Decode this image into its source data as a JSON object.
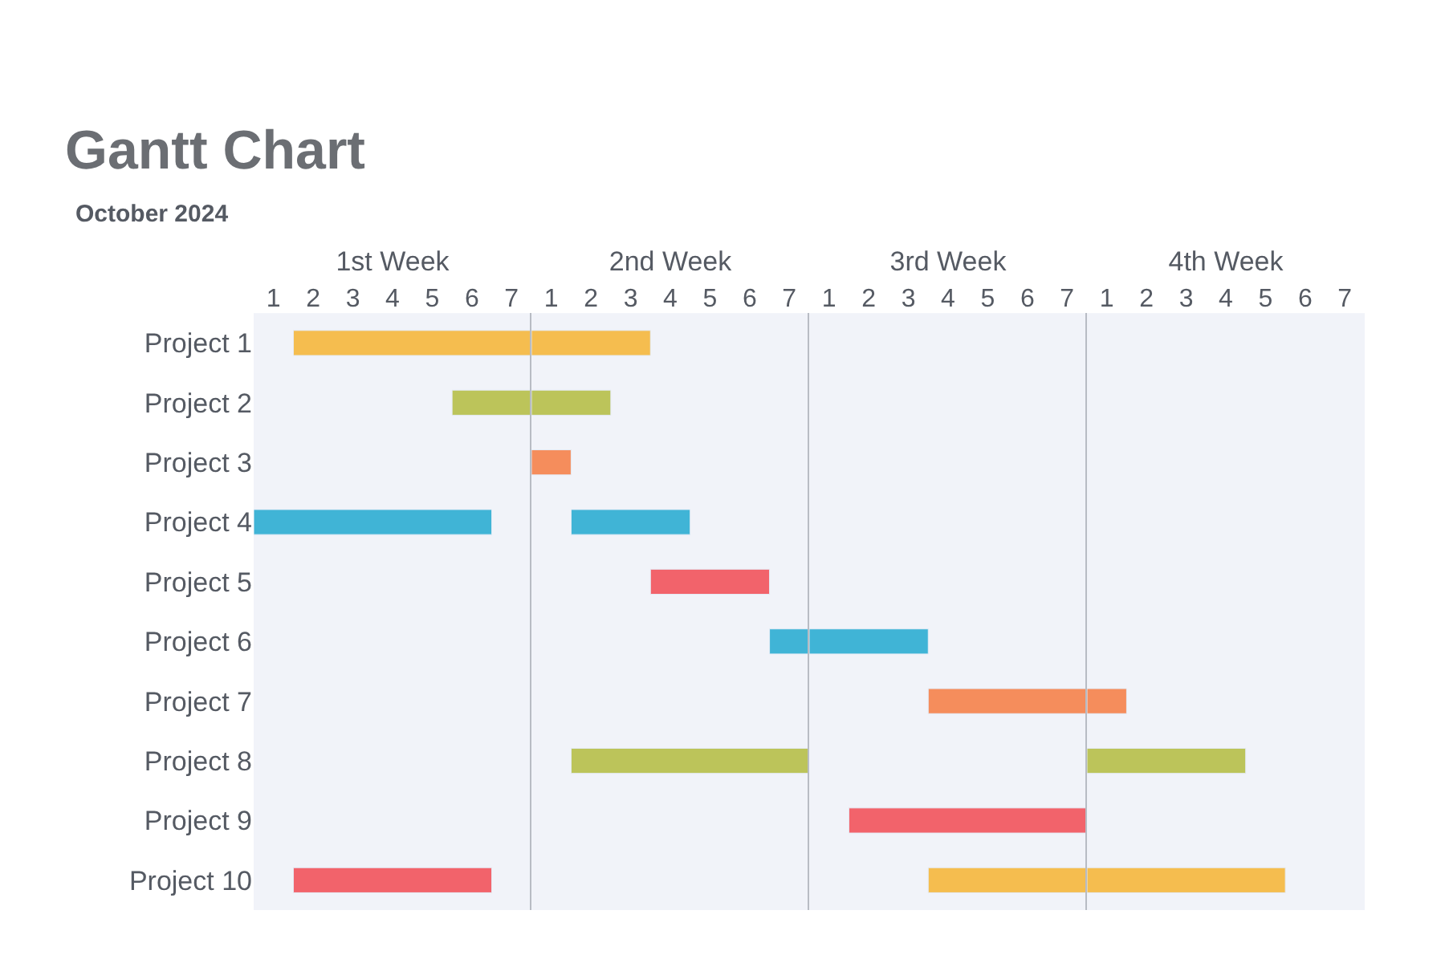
{
  "chart_data": [
    {
      "type": "bar",
      "orientation": "horizontal",
      "title": "Gantt Chart",
      "subtitle": "October 2024",
      "x2label": "1st Week",
      "categories": [
        "Project 1",
        "Project 2",
        "Project 3",
        "Project 4",
        "Project 5",
        "Project 6",
        "Project 7",
        "Project 8",
        "Project 9",
        "Project 10"
      ],
      "series": [
        {
          "base": [
            1.5,
            5.5,
            null,
            0.5,
            null,
            null,
            null,
            null,
            null,
            1.5
          ],
          "values": [
            6,
            2,
            null,
            6,
            null,
            null,
            null,
            null,
            null,
            5
          ],
          "colors": [
            "#f5bd4f",
            "#bcc45a",
            null,
            "#40b4d6",
            null,
            null,
            null,
            null,
            null,
            "#f2636b"
          ]
        }
      ],
      "xlim": [
        0.5,
        7.5
      ],
      "xticks": [
        1,
        2,
        3,
        4,
        5,
        6,
        7
      ],
      "grid": false
    },
    {
      "type": "bar",
      "orientation": "horizontal",
      "x2label": "2nd Week",
      "tick_labels": "x",
      "categories": [
        "Project 1",
        "Project 2",
        "Project 3",
        "Project 4",
        "Project 5",
        "Project 6",
        "Project 7",
        "Project 8",
        "Project 9",
        "Project 10"
      ],
      "series": [
        {
          "base": [
            0.5,
            0.5,
            0.5,
            1.5,
            3.5,
            6.5,
            null,
            1.5,
            null,
            null
          ],
          "values": [
            3,
            2,
            1,
            3,
            3,
            1,
            null,
            6,
            null,
            null
          ],
          "colors": [
            "#f5bd4f",
            "#bcc45a",
            "#f58d5c",
            "#40b4d6",
            "#f2636b",
            "#40b4d6",
            null,
            "#bcc45a",
            null,
            null
          ]
        }
      ],
      "xlim": [
        0.5,
        7.5
      ],
      "xticks": [
        1,
        2,
        3,
        4,
        5,
        6,
        7
      ],
      "grid": false
    },
    {
      "type": "bar",
      "orientation": "horizontal",
      "x2label": "3rd Week",
      "tick_labels": "x",
      "categories": [
        "Project 1",
        "Project 2",
        "Project 3",
        "Project 4",
        "Project 5",
        "Project 6",
        "Project 7",
        "Project 8",
        "Project 9",
        "Project 10"
      ],
      "series": [
        {
          "base": [
            null,
            null,
            null,
            null,
            null,
            0.5,
            3.5,
            null,
            1.5,
            3.5
          ],
          "values": [
            null,
            null,
            null,
            null,
            null,
            3,
            4,
            null,
            6,
            4
          ],
          "colors": [
            null,
            null,
            null,
            null,
            null,
            "#40b4d6",
            "#f58d5c",
            null,
            "#f2636b",
            "#f5bd4f"
          ]
        }
      ],
      "xlim": [
        0.5,
        7.5
      ],
      "xticks": [
        1,
        2,
        3,
        4,
        5,
        6,
        7
      ],
      "grid": false
    },
    {
      "type": "bar",
      "orientation": "horizontal",
      "x2label": "4th Week",
      "tick_labels": "x",
      "categories": [
        "Project 1",
        "Project 2",
        "Project 3",
        "Project 4",
        "Project 5",
        "Project 6",
        "Project 7",
        "Project 8",
        "Project 9",
        "Project 10"
      ],
      "series": [
        {
          "base": [
            null,
            null,
            null,
            null,
            null,
            null,
            0.5,
            0.5,
            null,
            0.5
          ],
          "values": [
            null,
            null,
            null,
            null,
            null,
            null,
            1,
            4,
            null,
            5
          ],
          "colors": [
            null,
            null,
            null,
            null,
            null,
            null,
            "#f58d5c",
            "#bcc45a",
            null,
            "#f5bd4f"
          ]
        }
      ],
      "xlim": [
        0.5,
        7.5
      ],
      "xticks": [
        1,
        2,
        3,
        4,
        5,
        6,
        7
      ],
      "grid": false
    }
  ]
}
